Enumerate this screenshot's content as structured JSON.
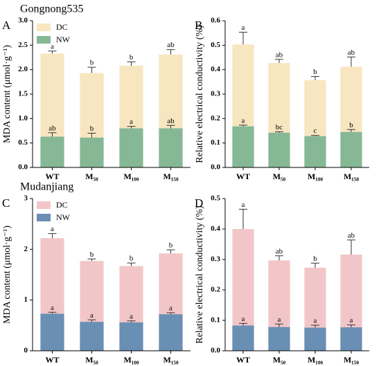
{
  "chart_data": [
    {
      "type": "bar",
      "panel": "A",
      "title": "Gongnong535",
      "ylabel": "MDA content (μmol·g⁻¹)",
      "categories": [
        "WT",
        "M₅₀",
        "M₁₀₀",
        "M₁₅₀"
      ],
      "series": [
        {
          "name": "DC",
          "color": "#f7e6c0",
          "values": [
            2.33,
            1.93,
            2.08,
            2.31
          ],
          "errors": [
            0.05,
            0.12,
            0.08,
            0.1
          ],
          "letters": [
            "a",
            "b",
            "b",
            "ab"
          ]
        },
        {
          "name": "NW",
          "color": "#86b896",
          "values": [
            0.63,
            0.61,
            0.8,
            0.8
          ],
          "errors": [
            0.08,
            0.09,
            0.04,
            0.06
          ],
          "letters": [
            "ab",
            "b",
            "a",
            "ab"
          ]
        }
      ],
      "ylim": [
        0,
        3
      ],
      "yticks": [
        {
          "value": 0,
          "label": "0.0"
        },
        0.5,
        {
          "value": 1,
          "label": "1.0"
        },
        1.5,
        {
          "value": 2,
          "label": "2.0"
        },
        2.5,
        {
          "value": 3,
          "label": "3.0"
        }
      ],
      "legend": "upper left"
    },
    {
      "type": "bar",
      "panel": "B",
      "ylabel": "Relative electrical conductivity (%)",
      "categories": [
        "WT",
        "M₅₀",
        "M₁₀₀",
        "M₁₅₀"
      ],
      "series": [
        {
          "color": "#f7e6c0",
          "values": [
            0.503,
            0.427,
            0.357,
            0.412
          ],
          "errors": [
            0.05,
            0.015,
            0.015,
            0.04
          ],
          "letters": [
            "a",
            "ab",
            "b",
            "ab"
          ]
        },
        {
          "color": "#86b896",
          "values": [
            0.168,
            0.142,
            0.128,
            0.145
          ],
          "errors": [
            0.005,
            0.004,
            0.003,
            0.01
          ],
          "letters": [
            "a",
            "bc",
            "c",
            "b"
          ]
        }
      ],
      "ylim": [
        0,
        0.6
      ],
      "yticks": [
        {
          "value": 0,
          "label": "0.0"
        },
        0.1,
        0.2,
        0.3,
        0.4,
        0.5,
        0.6
      ]
    },
    {
      "type": "bar",
      "panel": "C",
      "title": "Mudanjiang",
      "ylabel": "MDA content (μmol·g⁻¹)",
      "categories": [
        "WT",
        "M₅₀",
        "M₁₀₀",
        "M₁₅₀"
      ],
      "series": [
        {
          "name": "DC",
          "color": "#f2c6c8",
          "values": [
            2.22,
            1.77,
            1.67,
            1.92
          ],
          "errors": [
            0.09,
            0.04,
            0.06,
            0.07
          ],
          "letters": [
            "a",
            "b",
            "b",
            "b"
          ]
        },
        {
          "name": "NW",
          "color": "#6a8fb5",
          "values": [
            0.73,
            0.57,
            0.56,
            0.72
          ],
          "errors": [
            0.03,
            0.04,
            0.03,
            0.03
          ],
          "letters": [
            "a",
            "a",
            "a",
            "a"
          ]
        }
      ],
      "ylim": [
        0,
        3
      ],
      "yticks": [
        0,
        1,
        2,
        3
      ],
      "legend": "upper left"
    },
    {
      "type": "bar",
      "panel": "D",
      "ylabel": "Relative electrical conductivity (%)",
      "categories": [
        "WT",
        "M₅₀",
        "M₁₀₀",
        "M₁₅₀"
      ],
      "series": [
        {
          "color": "#f2c6c8",
          "values": [
            0.4,
            0.297,
            0.273,
            0.316
          ],
          "errors": [
            0.065,
            0.015,
            0.015,
            0.048
          ],
          "letters": [
            "a",
            "ab",
            "b",
            "ab"
          ]
        },
        {
          "color": "#6a8fb5",
          "values": [
            0.083,
            0.078,
            0.076,
            0.077
          ],
          "errors": [
            0.007,
            0.01,
            0.008,
            0.008
          ],
          "letters": [
            "a",
            "a",
            "a",
            "a"
          ]
        }
      ],
      "ylim": [
        0,
        0.5
      ],
      "yticks": [
        {
          "value": 0,
          "label": "0.0"
        },
        0.1,
        0.2,
        0.3,
        0.4,
        0.5
      ]
    }
  ]
}
